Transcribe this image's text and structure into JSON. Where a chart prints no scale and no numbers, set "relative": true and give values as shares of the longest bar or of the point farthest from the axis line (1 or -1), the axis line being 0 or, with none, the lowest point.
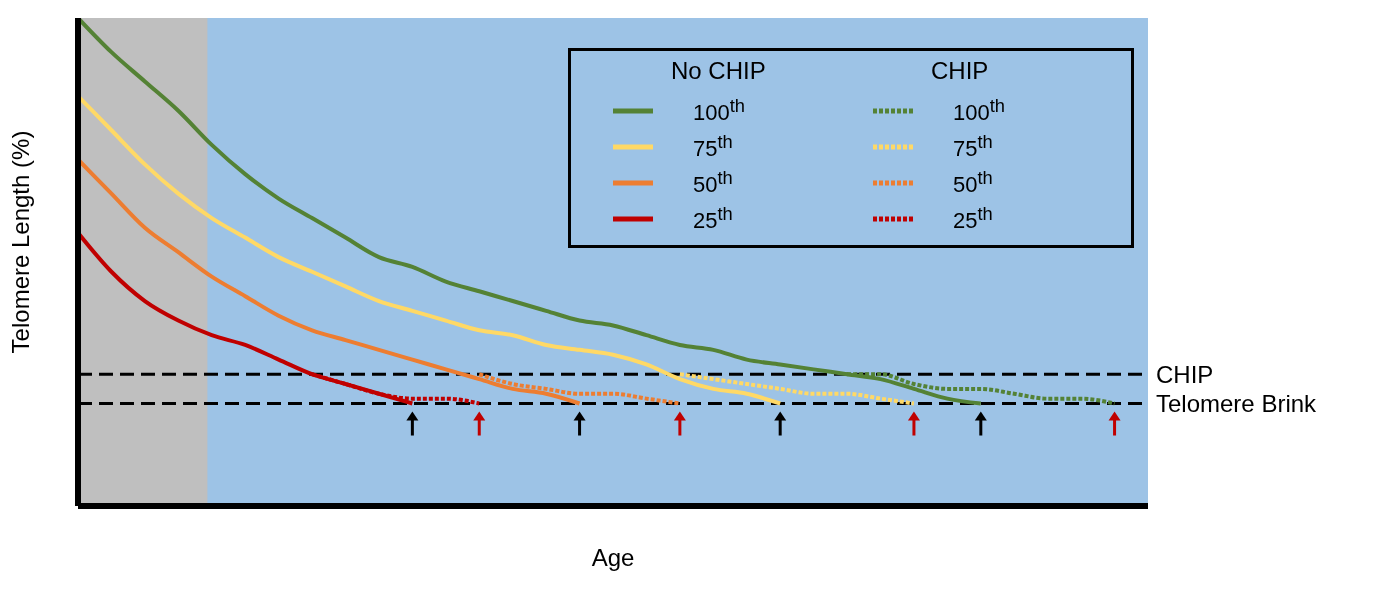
{
  "chart_data": {
    "type": "line",
    "relative": true,
    "xlabel": "Age",
    "ylabel": "Telomere Length (%)",
    "legend": "top right",
    "grid": false,
    "annotations": [
      "No CHIP",
      "CHIP"
    ],
    "categories": [
      null,
      null,
      null,
      null,
      null,
      null,
      null,
      null,
      null,
      null,
      null,
      null,
      null,
      null,
      null,
      null,
      null,
      null,
      null,
      null,
      null,
      null,
      null,
      null,
      null,
      null,
      null,
      null,
      null,
      null,
      null,
      null,
      null
    ],
    "series": [
      {
        "name": "100$^{th}$",
        "color": "#548235",
        "line_style": "solid",
        "values": [
          1,
          0.93,
          0.87,
          0.81,
          0.74,
          0.68,
          0.63,
          0.59,
          0.55,
          0.51,
          0.49,
          0.46,
          0.44,
          0.42,
          0.4,
          0.38,
          0.37,
          0.35,
          0.33,
          0.32,
          0.3,
          0.29,
          0.28,
          0.27,
          0.26,
          0.24,
          0.22,
          0.21,
          null,
          null,
          null,
          null,
          null
        ]
      },
      {
        "name": "75$^{th}$",
        "color": "#ffd966",
        "line_style": "solid",
        "values": [
          0.84,
          0.77,
          0.7,
          0.64,
          0.59,
          0.55,
          0.51,
          0.48,
          0.45,
          0.42,
          0.4,
          0.38,
          0.36,
          0.35,
          0.33,
          0.32,
          0.31,
          0.29,
          0.26,
          0.24,
          0.23,
          0.21,
          null,
          null,
          null,
          null,
          null,
          null,
          null,
          null,
          null,
          null,
          null
        ]
      },
      {
        "name": "50$^{th}$",
        "color": "#ed7d31",
        "line_style": "solid",
        "values": [
          0.71,
          0.64,
          0.57,
          0.52,
          0.47,
          0.43,
          0.39,
          0.36,
          0.34,
          0.32,
          0.3,
          0.28,
          0.26,
          0.24,
          0.23,
          0.21,
          null,
          null,
          null,
          null,
          null,
          null,
          null,
          null,
          null,
          null,
          null,
          null,
          null,
          null,
          null,
          null,
          null
        ]
      },
      {
        "name": "25$^{th}$",
        "color": "#c00000",
        "line_style": "solid",
        "values": [
          0.56,
          0.48,
          0.42,
          0.38,
          0.35,
          0.33,
          0.3,
          0.27,
          0.25,
          0.23,
          0.21,
          null,
          null,
          null,
          null,
          null,
          null,
          null,
          null,
          null,
          null,
          null,
          null,
          null,
          null,
          null,
          null,
          null,
          null,
          null,
          null,
          null,
          null
        ]
      },
      {
        "name": "100$^{th}$",
        "color": "#548235",
        "line_style": "dotted",
        "values": [
          null,
          null,
          null,
          null,
          null,
          null,
          null,
          null,
          null,
          null,
          null,
          null,
          null,
          null,
          null,
          null,
          null,
          null,
          null,
          null,
          null,
          null,
          null,
          0.27,
          0.27,
          0.25,
          0.24,
          0.24,
          0.23,
          0.22,
          0.22,
          0.21,
          null
        ]
      },
      {
        "name": "75$^{th}$",
        "color": "#ffd966",
        "line_style": "dotted",
        "values": [
          null,
          null,
          null,
          null,
          null,
          null,
          null,
          null,
          null,
          null,
          null,
          null,
          null,
          null,
          null,
          null,
          null,
          null,
          0.27,
          0.26,
          0.25,
          0.24,
          0.23,
          0.23,
          0.22,
          0.21,
          null,
          null,
          null,
          null,
          null,
          null,
          null
        ]
      },
      {
        "name": "50$^{th}$",
        "color": "#ed7d31",
        "line_style": "dotted",
        "values": [
          null,
          null,
          null,
          null,
          null,
          null,
          null,
          null,
          null,
          null,
          null,
          null,
          0.27,
          0.25,
          0.24,
          0.23,
          0.23,
          0.22,
          0.21,
          null,
          null,
          null,
          null,
          null,
          null,
          null,
          null,
          null,
          null,
          null,
          null,
          null,
          null
        ]
      },
      {
        "name": "25$^{th}$",
        "color": "#c00000",
        "line_style": "dotted",
        "values": [
          null,
          null,
          null,
          null,
          null,
          null,
          null,
          0.27,
          0.25,
          0.23,
          0.22,
          0.22,
          0.21,
          null,
          null,
          null,
          null,
          null,
          null,
          null,
          null,
          null,
          null,
          null,
          null,
          null,
          null,
          null,
          null,
          null,
          null,
          null,
          null
        ]
      }
    ],
    "ref_lines": [
      {
        "axis": "y",
        "value": 0.27,
        "label": "CHIP",
        "color": "#000000",
        "line_style": "dashed"
      },
      {
        "axis": "y",
        "value": 0.21,
        "label": "Telomere Brink",
        "color": "#000000",
        "line_style": "dashed"
      }
    ]
  }
}
